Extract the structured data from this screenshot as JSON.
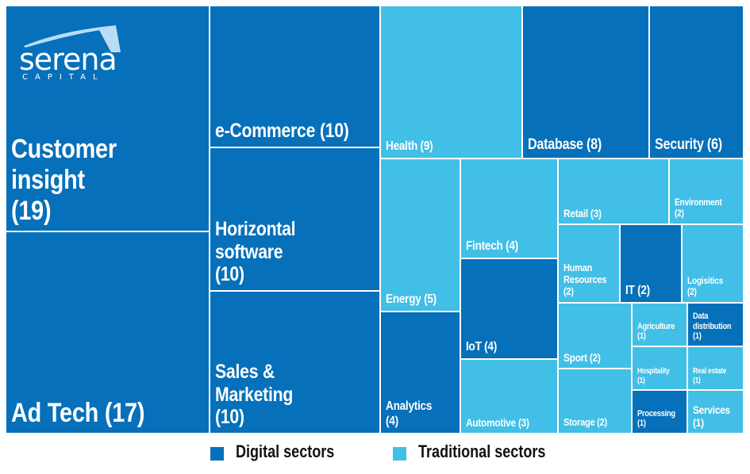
{
  "chart_data": {
    "type": "treemap",
    "title": "",
    "brand": {
      "name": "serena",
      "subtitle": "CAPITAL"
    },
    "colors": {
      "Digital sectors": "#0670BA",
      "Traditional sectors": "#41BFE6"
    },
    "legend": {
      "placement": "bottom-center",
      "entries": [
        {
          "label": "Digital sectors",
          "color": "#0670BA"
        },
        {
          "label": "Traditional sectors",
          "color": "#41BFE6"
        }
      ]
    },
    "items": [
      {
        "name": "Customer insight",
        "value": 19,
        "group": "Digital sectors",
        "label": "Customer insight (19)"
      },
      {
        "name": "Ad Tech",
        "value": 17,
        "group": "Digital sectors",
        "label": "Ad Tech (17)"
      },
      {
        "name": "e-Commerce",
        "value": 10,
        "group": "Digital sectors",
        "label": "e-Commerce (10)"
      },
      {
        "name": "Horizontal software",
        "value": 10,
        "group": "Digital sectors",
        "label": "Horizontal software (10)"
      },
      {
        "name": "Sales & Marketing",
        "value": 10,
        "group": "Digital sectors",
        "label": "Sales & Marketing (10)"
      },
      {
        "name": "Health",
        "value": 9,
        "group": "Traditional sectors",
        "label": "Health (9)"
      },
      {
        "name": "Database",
        "value": 8,
        "group": "Digital sectors",
        "label": "Database (8)"
      },
      {
        "name": "Security",
        "value": 6,
        "group": "Digital sectors",
        "label": "Security (6)"
      },
      {
        "name": "Energy",
        "value": 5,
        "group": "Traditional sectors",
        "label": "Energy (5)"
      },
      {
        "name": "Analytics",
        "value": 4,
        "group": "Digital sectors",
        "label": "Analytics (4)"
      },
      {
        "name": "Fintech",
        "value": 4,
        "group": "Traditional sectors",
        "label": "Fintech (4)"
      },
      {
        "name": "IoT",
        "value": 4,
        "group": "Digital sectors",
        "label": "IoT (4)"
      },
      {
        "name": "Automotive",
        "value": 3,
        "group": "Traditional sectors",
        "label": "Automotive (3)"
      },
      {
        "name": "Retail",
        "value": 3,
        "group": "Traditional sectors",
        "label": "Retail (3)"
      },
      {
        "name": "Environment",
        "value": 2,
        "group": "Traditional sectors",
        "label": "Environment (2)"
      },
      {
        "name": "Human Resources",
        "value": 2,
        "group": "Traditional sectors",
        "label": "Human Resources (2)"
      },
      {
        "name": "IT",
        "value": 2,
        "group": "Digital sectors",
        "label": "IT (2)"
      },
      {
        "name": "Logisitics",
        "value": 2,
        "group": "Traditional sectors",
        "label": "Logisitics (2)"
      },
      {
        "name": "Sport",
        "value": 2,
        "group": "Traditional sectors",
        "label": "Sport (2)"
      },
      {
        "name": "Storage",
        "value": 2,
        "group": "Traditional sectors",
        "label": "Storage (2)"
      },
      {
        "name": "Agriculture",
        "value": 1,
        "group": "Traditional sectors",
        "label": "Agriculture (1)"
      },
      {
        "name": "Data distribution",
        "value": 1,
        "group": "Digital sectors",
        "label": "Data distribution (1)"
      },
      {
        "name": "Hospitality",
        "value": 1,
        "group": "Traditional sectors",
        "label": "Hospitality (1)"
      },
      {
        "name": "Real estate",
        "value": 1,
        "group": "Traditional sectors",
        "label": "Real estate (1)"
      },
      {
        "name": "Processing",
        "value": 1,
        "group": "Digital sectors",
        "label": "Processing (1)"
      },
      {
        "name": "Services",
        "value": 1,
        "group": "Traditional sectors",
        "label": "Services (1)"
      }
    ]
  }
}
